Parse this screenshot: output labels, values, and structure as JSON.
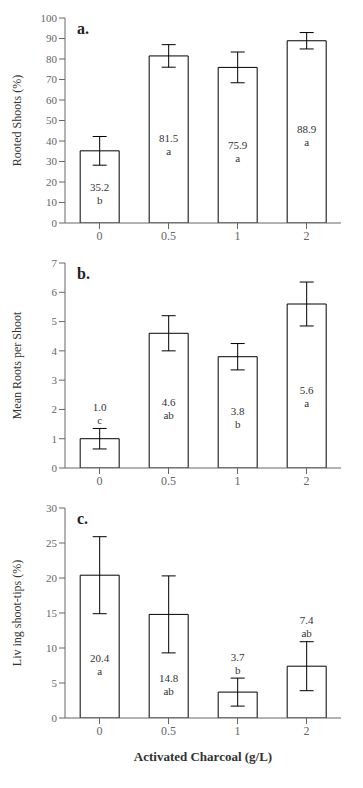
{
  "chart_data": [
    {
      "type": "bar",
      "title": "a.",
      "categories": [
        "0",
        "0.5",
        "1",
        "2"
      ],
      "values": [
        35.2,
        81.5,
        75.9,
        88.9
      ],
      "errors": [
        7.0,
        5.5,
        7.5,
        4.0
      ],
      "value_labels": [
        "35.2",
        "81.5",
        "75.9",
        "88.9"
      ],
      "annotations": [
        "b",
        "a",
        "a",
        "a"
      ],
      "data_labels": true,
      "ylabel": "Rooted Shoots (%)",
      "ylim": [
        0,
        100
      ],
      "yticks": [
        0,
        10,
        20,
        30,
        40,
        50,
        60,
        70,
        80,
        90,
        100
      ],
      "color": "#ffffff",
      "grid": false
    },
    {
      "type": "bar",
      "title": "b.",
      "categories": [
        "0",
        "0.5",
        "1",
        "2"
      ],
      "values": [
        1.0,
        4.6,
        3.8,
        5.6
      ],
      "errors": [
        0.35,
        0.6,
        0.45,
        0.75
      ],
      "value_labels": [
        "1.0",
        "4.6",
        "3.8",
        "5.6"
      ],
      "annotations": [
        "c",
        "ab",
        "b",
        "a"
      ],
      "data_labels": true,
      "ylabel": "Mean Roots per Shoot",
      "ylim": [
        0,
        7
      ],
      "yticks": [
        0,
        1,
        2,
        3,
        4,
        5,
        6,
        7
      ],
      "color": "#ffffff",
      "grid": false
    },
    {
      "type": "bar",
      "title": "c.",
      "categories": [
        "0",
        "0.5",
        "1",
        "2"
      ],
      "values": [
        20.4,
        14.8,
        3.7,
        7.4
      ],
      "errors": [
        5.5,
        5.5,
        2.0,
        3.5
      ],
      "value_labels": [
        "20.4",
        "14.8",
        "3.7",
        "7.4"
      ],
      "annotations": [
        "a",
        "ab",
        "b",
        "ab"
      ],
      "data_labels": true,
      "ylabel": "Liv ing shoot-tips (%)",
      "ylim": [
        0,
        30
      ],
      "yticks": [
        0,
        5,
        10,
        15,
        20,
        25,
        30
      ],
      "color": "#ffffff",
      "grid": false,
      "xlabel": "Activated Charcoal (g/L)"
    }
  ]
}
